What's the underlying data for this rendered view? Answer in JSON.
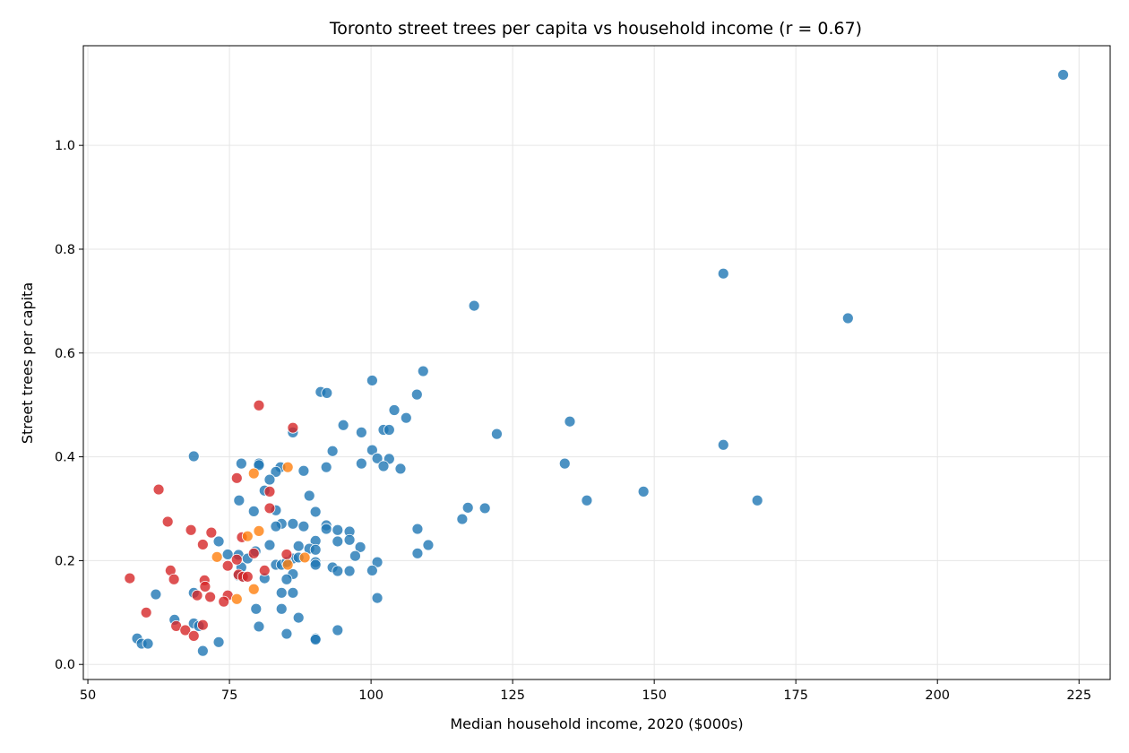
{
  "chart_data": {
    "type": "scatter",
    "title": "Toronto street trees per capita vs household income (r = 0.67)",
    "xlabel": "Median household income, 2020 ($000s)",
    "ylabel": "Street trees per capita",
    "xlim": [
      49.2,
      230.5
    ],
    "ylim": [
      -0.029,
      1.192
    ],
    "xticks": [
      50,
      75,
      100,
      125,
      150,
      175,
      200,
      225
    ],
    "xtick_labels": [
      "50",
      "75",
      "100",
      "125",
      "150",
      "175",
      "200",
      "225"
    ],
    "yticks": [
      0.0,
      0.2,
      0.4,
      0.6,
      0.8,
      1.0
    ],
    "ytick_labels": [
      "0.0",
      "0.2",
      "0.4",
      "0.6",
      "0.8",
      "1.0"
    ],
    "grid": true,
    "legend": "none",
    "series": [
      {
        "color": "#1f77b4",
        "points": [
          [
            222.2,
            1.136
          ],
          [
            162.2,
            0.753
          ],
          [
            184.2,
            0.667
          ],
          [
            118.2,
            0.691
          ],
          [
            109.2,
            0.565
          ],
          [
            100.2,
            0.547
          ],
          [
            91.1,
            0.525
          ],
          [
            92.2,
            0.523
          ],
          [
            108.1,
            0.52
          ],
          [
            104.1,
            0.49
          ],
          [
            106.2,
            0.475
          ],
          [
            135.1,
            0.468
          ],
          [
            95.1,
            0.461
          ],
          [
            86.2,
            0.447
          ],
          [
            98.3,
            0.447
          ],
          [
            102.2,
            0.452
          ],
          [
            103.2,
            0.452
          ],
          [
            122.2,
            0.444
          ],
          [
            162.2,
            0.423
          ],
          [
            68.7,
            0.401
          ],
          [
            100.2,
            0.413
          ],
          [
            93.2,
            0.411
          ],
          [
            101.1,
            0.397
          ],
          [
            103.2,
            0.396
          ],
          [
            77.1,
            0.387
          ],
          [
            80.2,
            0.387
          ],
          [
            80.2,
            0.384
          ],
          [
            98.3,
            0.387
          ],
          [
            134.2,
            0.387
          ],
          [
            102.2,
            0.382
          ],
          [
            105.2,
            0.377
          ],
          [
            84.0,
            0.38
          ],
          [
            92.1,
            0.38
          ],
          [
            83.2,
            0.371
          ],
          [
            88.1,
            0.373
          ],
          [
            89.1,
            0.325
          ],
          [
            148.1,
            0.333
          ],
          [
            168.2,
            0.316
          ],
          [
            138.1,
            0.316
          ],
          [
            76.7,
            0.316
          ],
          [
            81.2,
            0.335
          ],
          [
            82.1,
            0.356
          ],
          [
            117.1,
            0.302
          ],
          [
            120.1,
            0.301
          ],
          [
            79.3,
            0.295
          ],
          [
            83.2,
            0.297
          ],
          [
            90.2,
            0.294
          ],
          [
            116.1,
            0.28
          ],
          [
            108.2,
            0.261
          ],
          [
            86.2,
            0.271
          ],
          [
            84.2,
            0.271
          ],
          [
            83.2,
            0.266
          ],
          [
            88.1,
            0.266
          ],
          [
            92.1,
            0.268
          ],
          [
            92.1,
            0.261
          ],
          [
            94.1,
            0.259
          ],
          [
            96.2,
            0.256
          ],
          [
            96.2,
            0.24
          ],
          [
            94.1,
            0.237
          ],
          [
            90.2,
            0.238
          ],
          [
            73.1,
            0.237
          ],
          [
            82.1,
            0.23
          ],
          [
            110.1,
            0.23
          ],
          [
            87.2,
            0.228
          ],
          [
            89.1,
            0.223
          ],
          [
            90.2,
            0.221
          ],
          [
            98.1,
            0.226
          ],
          [
            108.2,
            0.214
          ],
          [
            79.6,
            0.218
          ],
          [
            74.7,
            0.212
          ],
          [
            76.6,
            0.211
          ],
          [
            86.2,
            0.204
          ],
          [
            87.2,
            0.206
          ],
          [
            97.2,
            0.209
          ],
          [
            90.2,
            0.197
          ],
          [
            101.1,
            0.197
          ],
          [
            78.2,
            0.204
          ],
          [
            83.2,
            0.192
          ],
          [
            84.2,
            0.192
          ],
          [
            85.1,
            0.197
          ],
          [
            90.2,
            0.192
          ],
          [
            77.1,
            0.187
          ],
          [
            93.2,
            0.187
          ],
          [
            96.2,
            0.18
          ],
          [
            94.1,
            0.18
          ],
          [
            100.2,
            0.181
          ],
          [
            86.2,
            0.174
          ],
          [
            85.1,
            0.164
          ],
          [
            81.2,
            0.166
          ],
          [
            76.6,
            0.171
          ],
          [
            77.2,
            0.169
          ],
          [
            62.0,
            0.135
          ],
          [
            68.7,
            0.138
          ],
          [
            84.2,
            0.138
          ],
          [
            86.2,
            0.138
          ],
          [
            101.1,
            0.128
          ],
          [
            79.7,
            0.107
          ],
          [
            84.2,
            0.107
          ],
          [
            87.2,
            0.09
          ],
          [
            65.3,
            0.086
          ],
          [
            68.7,
            0.079
          ],
          [
            69.6,
            0.074
          ],
          [
            80.2,
            0.073
          ],
          [
            94.1,
            0.066
          ],
          [
            85.1,
            0.059
          ],
          [
            58.7,
            0.05
          ],
          [
            59.5,
            0.04
          ],
          [
            60.6,
            0.04
          ],
          [
            73.1,
            0.043
          ],
          [
            90.2,
            0.05
          ],
          [
            90.2,
            0.048
          ],
          [
            70.3,
            0.026
          ]
        ]
      },
      {
        "color": "#d62728",
        "points": [
          [
            80.2,
            0.499
          ],
          [
            86.2,
            0.456
          ],
          [
            62.5,
            0.337
          ],
          [
            82.1,
            0.333
          ],
          [
            76.3,
            0.359
          ],
          [
            82.1,
            0.301
          ],
          [
            64.1,
            0.275
          ],
          [
            68.2,
            0.259
          ],
          [
            71.8,
            0.254
          ],
          [
            70.3,
            0.231
          ],
          [
            77.2,
            0.245
          ],
          [
            79.3,
            0.214
          ],
          [
            85.1,
            0.212
          ],
          [
            74.7,
            0.19
          ],
          [
            76.3,
            0.202
          ],
          [
            81.2,
            0.181
          ],
          [
            64.6,
            0.181
          ],
          [
            65.2,
            0.164
          ],
          [
            57.4,
            0.166
          ],
          [
            70.6,
            0.162
          ],
          [
            70.7,
            0.15
          ],
          [
            76.6,
            0.173
          ],
          [
            77.4,
            0.169
          ],
          [
            78.2,
            0.169
          ],
          [
            69.3,
            0.133
          ],
          [
            71.6,
            0.13
          ],
          [
            74.7,
            0.133
          ],
          [
            74.0,
            0.121
          ],
          [
            60.3,
            0.1
          ],
          [
            65.6,
            0.074
          ],
          [
            67.2,
            0.066
          ],
          [
            68.7,
            0.055
          ],
          [
            70.3,
            0.076
          ]
        ]
      },
      {
        "color": "#ff7f0e",
        "points": [
          [
            85.3,
            0.38
          ],
          [
            79.3,
            0.368
          ],
          [
            80.2,
            0.257
          ],
          [
            78.2,
            0.247
          ],
          [
            72.8,
            0.207
          ],
          [
            88.3,
            0.206
          ],
          [
            85.3,
            0.192
          ],
          [
            79.3,
            0.145
          ],
          [
            76.3,
            0.126
          ]
        ]
      }
    ]
  }
}
